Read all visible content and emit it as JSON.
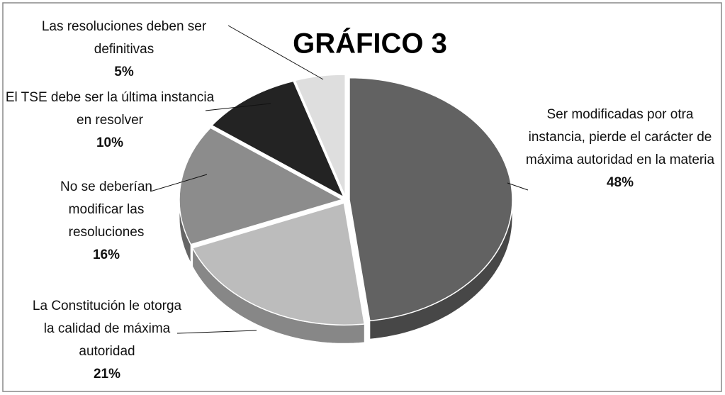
{
  "chart_data": {
    "type": "pie",
    "title": "GRÁFICO 3",
    "categories": [
      "Ser modificadas por otra instancia, pierde el carácter de máxima autoridad en la materia",
      "La Constitución le otorga la calidad de máxima autoridad",
      "No se deberían modificar las resoluciones",
      "El TSE debe ser la última instancia en resolver",
      "Las resoluciones deben ser definitivas"
    ],
    "values": [
      48,
      21,
      16,
      10,
      5
    ],
    "value_labels": [
      "48%",
      "21%",
      "16%",
      "10%",
      "5%"
    ],
    "colors": [
      "#626262",
      "#bcbcbc",
      "#8c8c8c",
      "#232323",
      "#dedede"
    ]
  }
}
